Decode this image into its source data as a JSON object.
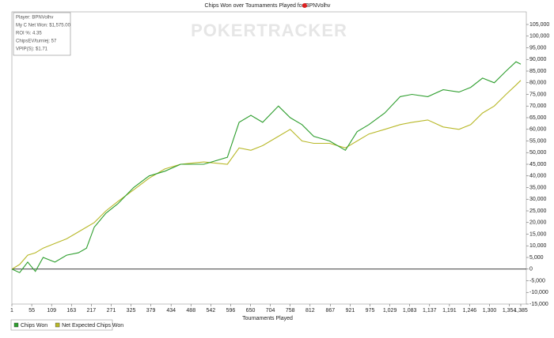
{
  "chart_data": {
    "type": "line",
    "title": "Chips Won over Tournaments Played for BPNVolhv",
    "watermark": "POKERTRACKER",
    "x_label": "Tournaments Played",
    "info_box": [
      "Player: BPNVolhv",
      "My C Net Won: $1,575.00",
      "ROI %: 4.35",
      "ChipsEV/turniej: 57",
      "VPIP(S): $1.71"
    ],
    "x": [
      1,
      22,
      44,
      65,
      86,
      118,
      150,
      182,
      204,
      225,
      257,
      289,
      332,
      374,
      417,
      460,
      523,
      587,
      619,
      651,
      683,
      726,
      758,
      790,
      822,
      865,
      908,
      940,
      972,
      1015,
      1057,
      1089,
      1132,
      1174,
      1217,
      1249,
      1281,
      1313,
      1345,
      1372,
      1385
    ],
    "series": [
      {
        "name": "Chips Won",
        "color": "#2e9e2e",
        "values": [
          0,
          -1500,
          3000,
          -1000,
          5000,
          3000,
          6000,
          7000,
          9000,
          18000,
          24000,
          28000,
          35000,
          40000,
          42000,
          45000,
          45000,
          48000,
          63000,
          66000,
          63000,
          70000,
          65000,
          62000,
          57000,
          55000,
          51000,
          59000,
          62000,
          67000,
          74000,
          75000,
          74000,
          77000,
          76000,
          78000,
          82000,
          80000,
          85000,
          89000,
          88000
        ]
      },
      {
        "name": "Net Expected Chips Won",
        "color": "#b8b828",
        "values": [
          0,
          2000,
          6000,
          7000,
          9000,
          11000,
          13000,
          16000,
          18000,
          20000,
          25000,
          29000,
          34000,
          39000,
          43000,
          45000,
          46000,
          45000,
          52000,
          51000,
          53000,
          57000,
          60000,
          55000,
          54000,
          54000,
          52000,
          55000,
          58000,
          60000,
          62000,
          63000,
          64000,
          61000,
          60000,
          62000,
          67000,
          70000,
          75000,
          79000,
          81000
        ]
      }
    ],
    "xlim": [
      1,
      1385
    ],
    "xticks": [
      1,
      55,
      109,
      163,
      217,
      271,
      325,
      379,
      434,
      488,
      542,
      596,
      650,
      704,
      758,
      812,
      867,
      921,
      975,
      {
        "value": 1029,
        "label": "1,029"
      },
      {
        "value": 1083,
        "label": "1,083"
      },
      {
        "value": 1137,
        "label": "1,137"
      },
      {
        "value": 1191,
        "label": "1,191"
      },
      {
        "value": 1246,
        "label": "1,246"
      },
      {
        "value": 1300,
        "label": "1,300"
      },
      {
        "value": 1354,
        "label": "1,354"
      },
      {
        "value": 1385,
        "label": "1,385"
      }
    ],
    "ylim": [
      -15000,
      105000
    ],
    "yticks": [
      {
        "value": -15000,
        "label": "-15,000"
      },
      {
        "value": -10000,
        "label": "-10,000"
      },
      {
        "value": -5000,
        "label": "-5,000"
      },
      0,
      {
        "value": 5000,
        "label": "5,000"
      },
      {
        "value": 10000,
        "label": "10,000"
      },
      {
        "value": 15000,
        "label": "15,000"
      },
      {
        "value": 20000,
        "label": "20,000"
      },
      {
        "value": 25000,
        "label": "25,000"
      },
      {
        "value": 30000,
        "label": "30,000"
      },
      {
        "value": 35000,
        "label": "35,000"
      },
      {
        "value": 40000,
        "label": "40,000"
      },
      {
        "value": 45000,
        "label": "45,000"
      },
      {
        "value": 50000,
        "label": "50,000"
      },
      {
        "value": 55000,
        "label": "55,000"
      },
      {
        "value": 60000,
        "label": "60,000"
      },
      {
        "value": 65000,
        "label": "65,000"
      },
      {
        "value": 70000,
        "label": "70,000"
      },
      {
        "value": 75000,
        "label": "75,000"
      },
      {
        "value": 80000,
        "label": "80,000"
      },
      {
        "value": 85000,
        "label": "85,000"
      },
      {
        "value": 90000,
        "label": "90,000"
      },
      {
        "value": 95000,
        "label": "95,000"
      },
      {
        "value": 100000,
        "label": "100,000"
      },
      {
        "value": 105000,
        "label": "105,000"
      }
    ],
    "zero_line": true
  }
}
